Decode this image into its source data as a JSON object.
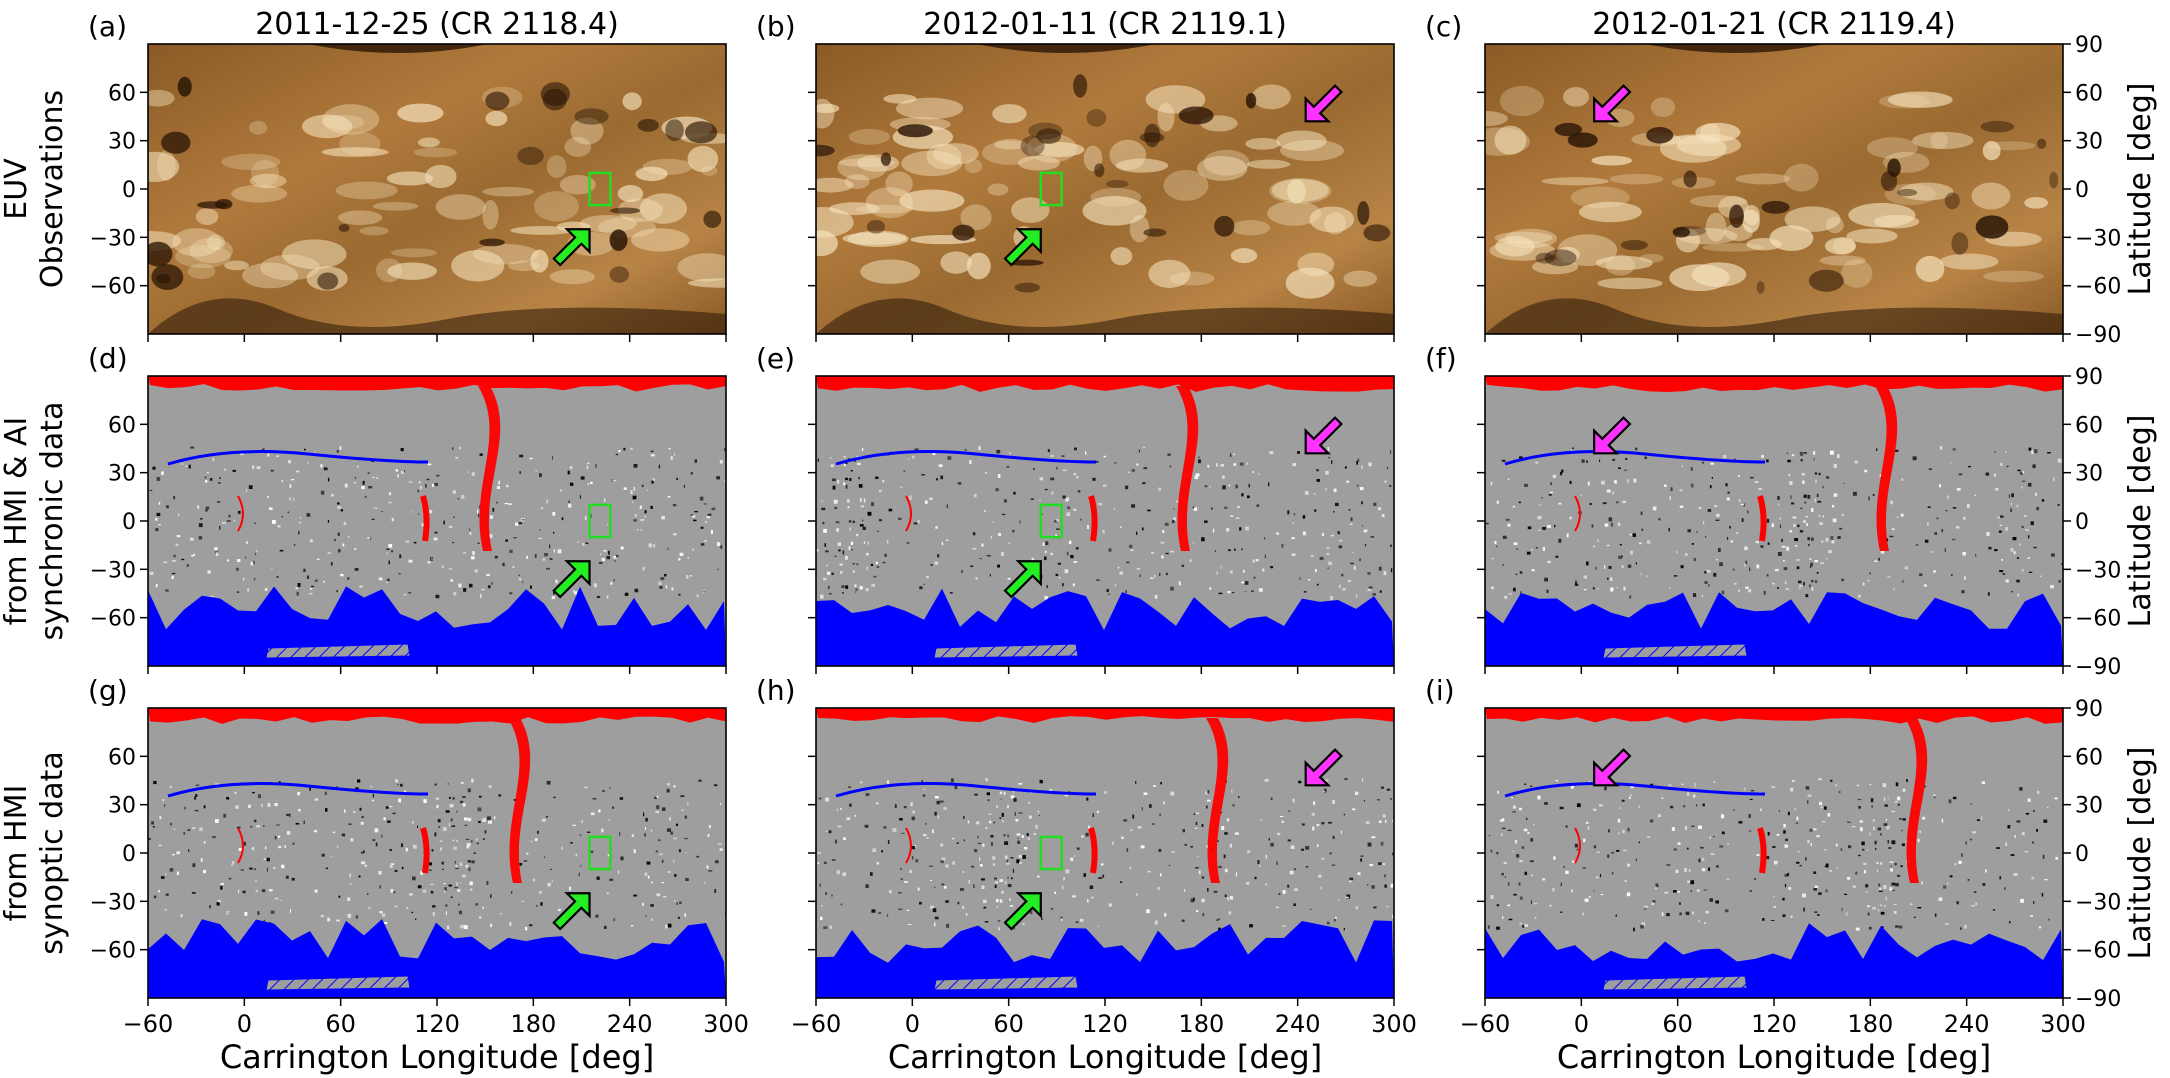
{
  "figure": {
    "column_titles": [
      "2011-12-25 (CR 2118.4)",
      "2012-01-11 (CR 2119.1)",
      "2012-01-21 (CR 2119.4)"
    ],
    "row_labels": [
      [
        "EUV",
        "Observations"
      ],
      [
        "from HMI & AI",
        "synchronic data"
      ],
      [
        "from HMI",
        "synoptic data"
      ]
    ],
    "panel_letters": [
      "(a)",
      "(b)",
      "(c)",
      "(d)",
      "(e)",
      "(f)",
      "(g)",
      "(h)",
      "(i)"
    ],
    "xlabel": "Carrington Longitude [deg]",
    "right_ylabel": "Latitude [deg]",
    "x_ticks": [
      -60,
      0,
      60,
      120,
      180,
      240,
      300
    ],
    "y_ticks_left": [
      60,
      30,
      0,
      -30,
      -60
    ],
    "y_ticks_right": [
      90,
      60,
      30,
      0,
      -30,
      -60,
      -90
    ],
    "colors": {
      "euv_dark": "#2a1505",
      "euv_mid": "#8a5a26",
      "euv_bright": "#f6e3bd",
      "magnetogram_gray": "#9e9e9e",
      "positive_open": "#ff0000",
      "negative_open": "#0000ff",
      "box": "#22dd22",
      "green_arrow": "#22ee22",
      "magenta_arrow": "#ff33ff"
    }
  },
  "chart_data": [
    {
      "panel": "(a)",
      "type": "heatmap",
      "title": "2011-12-25 (CR 2118.4)",
      "xlim": [
        -60,
        300
      ],
      "ylim": [
        -90,
        90
      ],
      "row": "EUV Observations",
      "markers": [
        {
          "kind": "box",
          "lon": [
            215,
            228
          ],
          "lat": [
            -10,
            10
          ]
        },
        {
          "kind": "green-arrow",
          "target_lon": 215,
          "target_lat": -25
        }
      ]
    },
    {
      "panel": "(b)",
      "type": "heatmap",
      "title": "2012-01-11 (CR 2119.1)",
      "xlim": [
        -60,
        300
      ],
      "ylim": [
        -90,
        90
      ],
      "row": "EUV Observations",
      "markers": [
        {
          "kind": "box",
          "lon": [
            80,
            93
          ],
          "lat": [
            -10,
            10
          ]
        },
        {
          "kind": "green-arrow",
          "target_lon": 80,
          "target_lat": -25
        },
        {
          "kind": "magenta-arrow",
          "target_lon": 245,
          "target_lat": 42
        }
      ]
    },
    {
      "panel": "(c)",
      "type": "heatmap",
      "title": "2012-01-21 (CR 2119.4)",
      "xlim": [
        -60,
        300
      ],
      "ylim": [
        -90,
        90
      ],
      "row": "EUV Observations",
      "markers": [
        {
          "kind": "magenta-arrow",
          "target_lon": 8,
          "target_lat": 42
        }
      ]
    },
    {
      "panel": "(d)",
      "type": "heatmap",
      "xlim": [
        -60,
        300
      ],
      "ylim": [
        -90,
        90
      ],
      "row": "from HMI & AI synchronic data",
      "markers": [
        {
          "kind": "box",
          "lon": [
            215,
            228
          ],
          "lat": [
            -10,
            10
          ]
        },
        {
          "kind": "green-arrow",
          "target_lon": 215,
          "target_lat": -25
        }
      ]
    },
    {
      "panel": "(e)",
      "type": "heatmap",
      "xlim": [
        -60,
        300
      ],
      "ylim": [
        -90,
        90
      ],
      "row": "from HMI & AI synchronic data",
      "markers": [
        {
          "kind": "box",
          "lon": [
            80,
            93
          ],
          "lat": [
            -10,
            10
          ]
        },
        {
          "kind": "green-arrow",
          "target_lon": 80,
          "target_lat": -25
        },
        {
          "kind": "magenta-arrow",
          "target_lon": 245,
          "target_lat": 42
        }
      ]
    },
    {
      "panel": "(f)",
      "type": "heatmap",
      "xlim": [
        -60,
        300
      ],
      "ylim": [
        -90,
        90
      ],
      "row": "from HMI & AI synchronic data",
      "markers": [
        {
          "kind": "magenta-arrow",
          "target_lon": 8,
          "target_lat": 42
        }
      ]
    },
    {
      "panel": "(g)",
      "type": "heatmap",
      "xlim": [
        -60,
        300
      ],
      "ylim": [
        -90,
        90
      ],
      "row": "from HMI synoptic data",
      "markers": [
        {
          "kind": "box",
          "lon": [
            215,
            228
          ],
          "lat": [
            -10,
            10
          ]
        },
        {
          "kind": "green-arrow",
          "target_lon": 215,
          "target_lat": -25
        }
      ]
    },
    {
      "panel": "(h)",
      "type": "heatmap",
      "xlim": [
        -60,
        300
      ],
      "ylim": [
        -90,
        90
      ],
      "row": "from HMI synoptic data",
      "markers": [
        {
          "kind": "box",
          "lon": [
            80,
            93
          ],
          "lat": [
            -10,
            10
          ]
        },
        {
          "kind": "green-arrow",
          "target_lon": 80,
          "target_lat": -25
        },
        {
          "kind": "magenta-arrow",
          "target_lon": 245,
          "target_lat": 42
        }
      ]
    },
    {
      "panel": "(i)",
      "type": "heatmap",
      "xlim": [
        -60,
        300
      ],
      "ylim": [
        -90,
        90
      ],
      "row": "from HMI synoptic data",
      "markers": [
        {
          "kind": "magenta-arrow",
          "target_lon": 8,
          "target_lat": 42
        }
      ]
    }
  ]
}
